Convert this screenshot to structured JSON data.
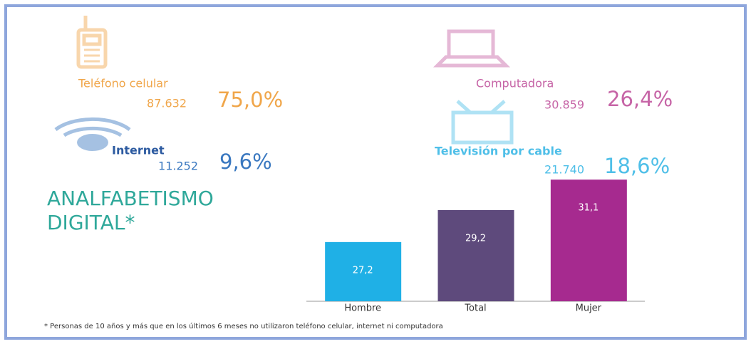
{
  "stats": [
    {
      "label": "Teléfono celular",
      "count": "87.632",
      "percent": "75,0%",
      "color": "#f0a64a"
    },
    {
      "label": "Computadora",
      "count": "30.859",
      "percent": "26,4%",
      "color": "#c664a6"
    },
    {
      "label": "Internet",
      "count": "11.252",
      "percent": "9,6%",
      "color": "#3a78c0"
    },
    {
      "label": "Televisión por cable",
      "count": "21.740",
      "percent": "18,6%",
      "color": "#4fbfe8"
    }
  ],
  "chart_data": {
    "type": "bar",
    "title": "ANALFABETISMO DIGITAL*",
    "categories": [
      "Hombre",
      "Total",
      "Mujer"
    ],
    "values": [
      27.2,
      29.2,
      31.1
    ],
    "value_labels": [
      "27,2",
      "29,2",
      "31,1"
    ],
    "colors": [
      "#1fb0e6",
      "#5e4a7c",
      "#a62a8f"
    ],
    "ylim": [
      23.5,
      32
    ]
  },
  "footnote": "* Personas de 10 años y más que en los últimos 6 meses no utilizaron teléfono celular, internet ni computadora"
}
